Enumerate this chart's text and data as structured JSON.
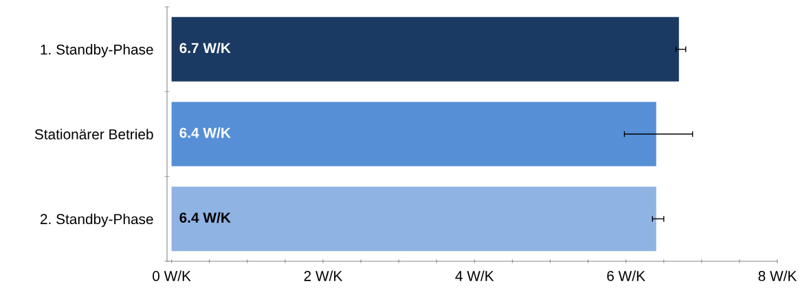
{
  "chart_data": {
    "type": "bar",
    "orientation": "horizontal",
    "categories": [
      "1. Standby-Phase",
      "Stationärer Betrieb",
      "2. Standby-Phase"
    ],
    "values": [
      6.7,
      6.4,
      6.4
    ],
    "colors": [
      "#1b3a63",
      "#568fd6",
      "#8fb3e3"
    ],
    "value_labels": [
      "6.7 W/K",
      "6.4 W/K",
      "6.4 W/K"
    ],
    "errors": [
      [
        6.66,
        6.79
      ],
      [
        5.98,
        6.88
      ],
      [
        6.35,
        6.5
      ]
    ],
    "xlim": [
      -0.06,
      8
    ],
    "xticks": [
      {
        "value": 0,
        "label": "0 W/K"
      },
      {
        "value": 0.5,
        "label": null
      },
      {
        "value": 1,
        "label": null
      },
      {
        "value": 1.5,
        "label": null
      },
      {
        "value": 2,
        "label": "2 W/K"
      },
      {
        "value": 2.5,
        "label": null
      },
      {
        "value": 3,
        "label": null
      },
      {
        "value": 3.5,
        "label": null
      },
      {
        "value": 4,
        "label": "4 W/K"
      },
      {
        "value": 4.5,
        "label": null
      },
      {
        "value": 5,
        "label": null
      },
      {
        "value": 5.5,
        "label": null
      },
      {
        "value": 6,
        "label": "6 W/K"
      },
      {
        "value": 6.5,
        "label": null
      },
      {
        "value": 7,
        "label": null
      },
      {
        "value": 7.5,
        "label": null
      },
      {
        "value": 8,
        "label": "8 W/K"
      }
    ],
    "grid": false,
    "legend": false
  }
}
